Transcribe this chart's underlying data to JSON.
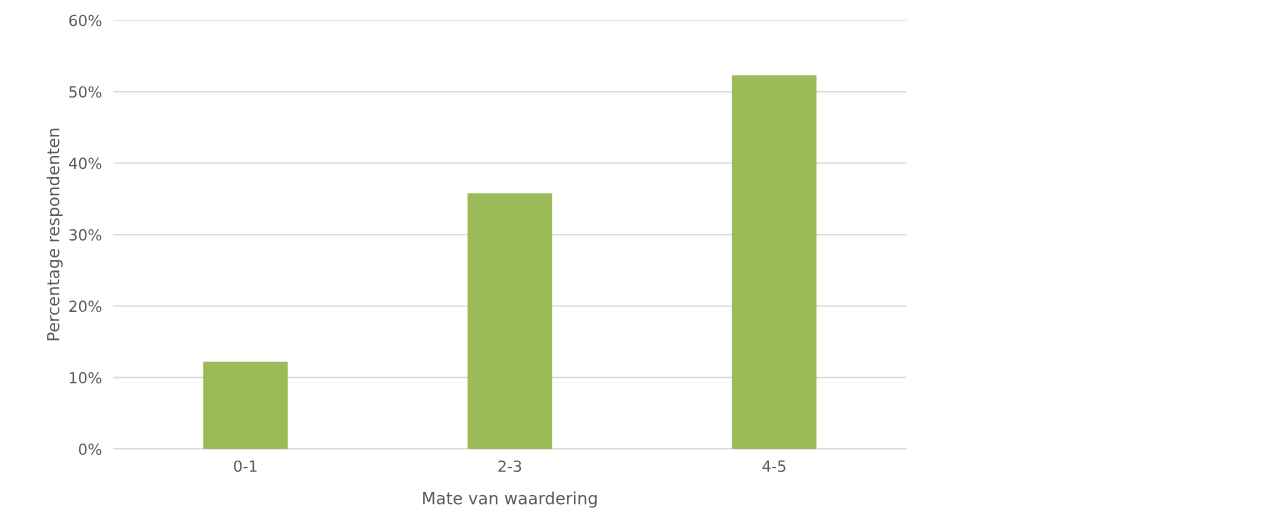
{
  "chart_data": {
    "type": "bar",
    "xlabel": "Mate van waardering",
    "ylabel": "Percentage respondenten",
    "categories": [
      "0-1",
      "2-3",
      "4-5"
    ],
    "values": [
      12.2,
      35.8,
      52.3
    ],
    "color": "#9bbb59",
    "ylim": [
      0,
      60
    ],
    "yticks": [
      {
        "value": 0,
        "label": "0%"
      },
      {
        "value": 10,
        "label": "10%"
      },
      {
        "value": 20,
        "label": "20%"
      },
      {
        "value": 30,
        "label": "30%"
      },
      {
        "value": 40,
        "label": "40%"
      },
      {
        "value": 50,
        "label": "50%"
      },
      {
        "value": 60,
        "label": "60%"
      }
    ],
    "grid": "y",
    "legend": false
  }
}
